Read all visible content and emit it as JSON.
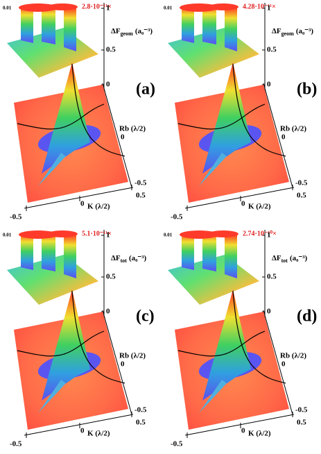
{
  "panels": [
    {
      "label": "(a)",
      "inset_tick": "0.01",
      "multiplier": "2.8·10⁻¹¹×",
      "z_ticks": [
        "1",
        "0.5",
        "0"
      ],
      "z_label": {
        "main": "ΔF",
        "sub": "geom",
        "unit": "(a₀⁻³)"
      },
      "rb_label": "Rb (λ/2)",
      "rb_ticks": [
        "0",
        "-0.5"
      ],
      "k_label": "K (λ/2)",
      "k_ticks": [
        "-0.5",
        "0",
        "0.5"
      ]
    },
    {
      "label": "(b)",
      "inset_tick": "0.01",
      "multiplier": "4.28·10⁻¹¹×",
      "z_ticks": [
        "1",
        "0.5",
        "0"
      ],
      "z_label": {
        "main": "ΔF",
        "sub": "geom",
        "unit": "(a₀⁻³)"
      },
      "rb_label": "Rb (λ/2)",
      "rb_ticks": [
        "0",
        "-0.5"
      ],
      "k_label": "K (λ/2)",
      "k_ticks": [
        "-0.5",
        "0",
        "0.5"
      ]
    },
    {
      "label": "(c)",
      "inset_tick": "0.01",
      "multiplier": "5.1·10⁻¹¹×",
      "z_ticks": [
        "1",
        "0.5",
        "0"
      ],
      "z_label": {
        "main": "ΔF",
        "sub": "tot",
        "unit": "(a₀⁻³)"
      },
      "rb_label": "Rb (λ/2)",
      "rb_ticks": [
        "0",
        "-0.5"
      ],
      "k_label": "K (λ/2)",
      "k_ticks": [
        "-0.5",
        "0",
        "0.5"
      ]
    },
    {
      "label": "(d)",
      "inset_tick": "0.01",
      "multiplier": "2.74·10⁻¹⁰×",
      "z_ticks": [
        "1",
        "0.5",
        "0"
      ],
      "z_label": {
        "main": "ΔF",
        "sub": "tot",
        "unit": "(a₀⁻³)"
      },
      "rb_label": "Rb (λ/2)",
      "rb_ticks": [
        "0",
        "-0.5"
      ],
      "k_label": "K (λ/2)",
      "k_ticks": [
        "-0.5",
        "0",
        "0.5"
      ]
    }
  ]
}
